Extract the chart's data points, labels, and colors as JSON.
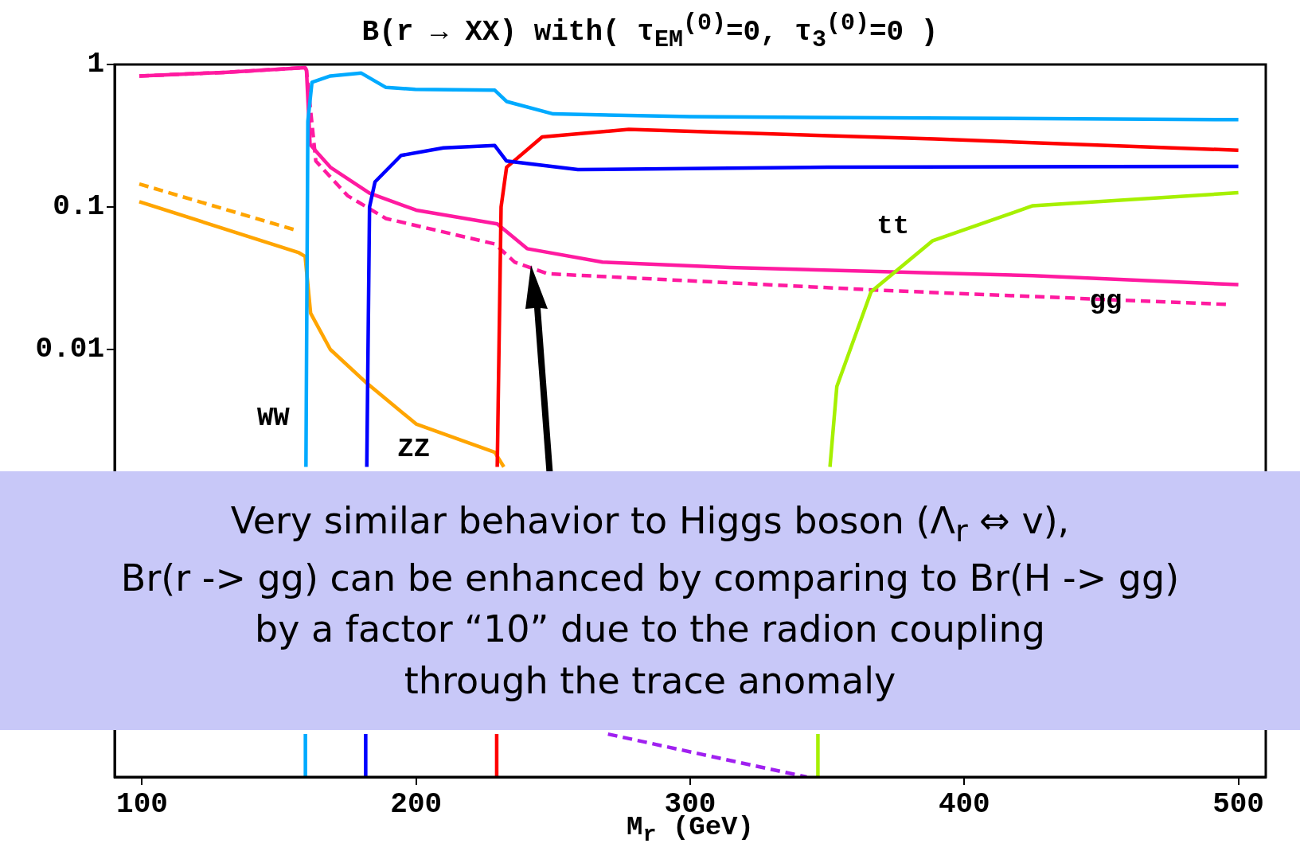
{
  "chart_data": {
    "type": "line",
    "title": "B(r → XX) with( τ$_{EM}$$^{(0)}$=0, τ$_{3}$$^{(0)}$=0 )",
    "xlabel": "M$_{r}$ (GeV)",
    "log": "y",
    "marker": "none",
    "xlim": [
      90,
      510
    ],
    "xticks": [
      100,
      200,
      300,
      400,
      500
    ],
    "ylim": [
      1e-05,
      1
    ],
    "yticks": [
      1,
      0.1,
      0.01
    ],
    "series": [
      {
        "name": "WW",
        "color": "#00aaff",
        "line_style": "solid",
        "x": [
          159.6,
          159.6,
          null,
          159.8,
          160.5,
          162,
          168.7,
          180,
          189,
          199.7,
          228.7,
          233,
          250,
          300,
          400,
          500
        ],
        "values": [
          1e-05,
          2e-05,
          null,
          0.0015,
          0.4,
          0.75,
          0.83,
          0.87,
          0.69,
          0.67,
          0.66,
          0.55,
          0.45,
          0.43,
          0.42,
          0.41
        ]
      },
      {
        "name": "ZZ",
        "color": "#0000ff",
        "line_style": "solid",
        "x": [
          181.6,
          181.6,
          null,
          182,
          183,
          185,
          194.5,
          210,
          228.7,
          233,
          259,
          350,
          500
        ],
        "values": [
          1e-05,
          2e-05,
          null,
          0.0015,
          0.1,
          0.15,
          0.23,
          0.26,
          0.27,
          0.21,
          0.183,
          0.19,
          0.193
        ]
      },
      {
        "color": "#ff0000",
        "line_style": "solid",
        "x": [
          229.4,
          229.4,
          null,
          229.6,
          231,
          233,
          246,
          277.6,
          389,
          500
        ],
        "values": [
          1e-05,
          2e-05,
          null,
          0.0015,
          0.1,
          0.19,
          0.31,
          0.35,
          0.3,
          0.25
        ]
      },
      {
        "name": "tt",
        "color": "#a6f000",
        "line_style": "solid",
        "x": [
          346.6,
          346.6,
          null,
          351,
          353.5,
          366,
          388.5,
          425,
          500
        ],
        "values": [
          1e-05,
          2e-05,
          null,
          0.0015,
          0.0055,
          0.0254,
          0.058,
          0.102,
          0.126
        ]
      },
      {
        "color": "#ff1aa0",
        "line_style": "solid",
        "x": [
          99,
          130,
          159.5,
          160,
          161.3,
          164,
          168.7,
          183,
          200,
          229.6,
          240.5,
          268,
          314.5,
          425,
          500
        ],
        "values": [
          0.83,
          0.88,
          0.95,
          0.91,
          0.275,
          0.24,
          0.19,
          0.125,
          0.095,
          0.076,
          0.051,
          0.041,
          0.0376,
          0.033,
          0.0285
        ]
      },
      {
        "name": "gg",
        "color": "#ff1aa0",
        "line_style": "dashed",
        "x": [
          99,
          130,
          159.5,
          160,
          163.4,
          175,
          189,
          228.7,
          236,
          248,
          370,
          496
        ],
        "values": [
          0.83,
          0.88,
          0.95,
          0.91,
          0.21,
          0.12,
          0.083,
          0.055,
          0.041,
          0.034,
          0.026,
          0.0207
        ]
      },
      {
        "color": "#ffa500",
        "line_style": "solid",
        "x": [
          99,
          157,
          159.5,
          161.5,
          168.7,
          182,
          200,
          228.7,
          232
        ],
        "values": [
          0.109,
          0.048,
          0.045,
          0.018,
          0.01,
          0.0058,
          0.003,
          0.0019,
          0.0015
        ]
      },
      {
        "color": "#ffa500",
        "line_style": "dashed",
        "x": [
          99,
          157
        ],
        "values": [
          0.145,
          0.068
        ]
      },
      {
        "color": "#a020f0",
        "line_style": "dashed",
        "x": [
          270,
          342.5
        ],
        "values": [
          2e-05,
          1e-05
        ]
      }
    ],
    "annotations": [
      "Very similar behavior to Higgs boson (Λ$_{r}$ ⇔ v),",
      "Br(r -> gg) can be enhanced by comparing to Br(H -> gg)",
      "by a factor “10” due to the radion coupling",
      "through the trace anomaly"
    ]
  }
}
